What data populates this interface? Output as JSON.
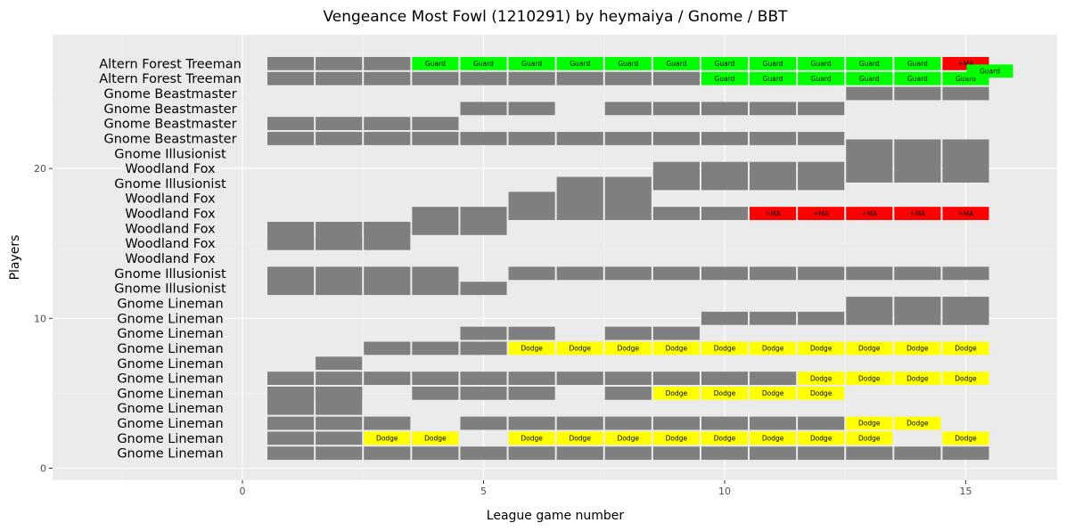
{
  "chart_data": {
    "type": "heatmap",
    "title": "Vengeance Most Fowl (1210291) by heymaiya / Gnome / BBT",
    "xlabel": "League game number",
    "ylabel": "Players",
    "xlim": [
      -3.5,
      16.5
    ],
    "ylim": [
      -1,
      28.5
    ],
    "x_ticks": [
      0,
      5,
      10,
      15
    ],
    "y_ticks": [
      0,
      10,
      20
    ],
    "colors": {
      "panel": "#ebebeb",
      "grid_major": "#ffffff",
      "tile": "#7f7f7f",
      "Guard": "#00ff00",
      "Dodge": "#ffff00",
      "+MA": "#ff0000"
    },
    "rows": [
      {
        "y": 1,
        "position": "Gnome Lineman"
      },
      {
        "y": 2,
        "position": "Gnome Lineman"
      },
      {
        "y": 3,
        "position": "Gnome Lineman"
      },
      {
        "y": 4,
        "position": "Gnome Lineman"
      },
      {
        "y": 5,
        "position": "Gnome Lineman"
      },
      {
        "y": 6,
        "position": "Gnome Lineman"
      },
      {
        "y": 7,
        "position": "Gnome Lineman"
      },
      {
        "y": 8,
        "position": "Gnome Lineman"
      },
      {
        "y": 9,
        "position": "Gnome Lineman"
      },
      {
        "y": 10,
        "position": "Gnome Lineman"
      },
      {
        "y": 11,
        "position": "Gnome Lineman"
      },
      {
        "y": 12,
        "position": "Gnome Illusionist"
      },
      {
        "y": 13,
        "position": "Gnome Illusionist"
      },
      {
        "y": 14,
        "position": "Woodland Fox"
      },
      {
        "y": 15,
        "position": "Woodland Fox"
      },
      {
        "y": 16,
        "position": "Woodland Fox"
      },
      {
        "y": 17,
        "position": "Woodland Fox"
      },
      {
        "y": 18,
        "position": "Woodland Fox"
      },
      {
        "y": 19,
        "position": "Gnome Illusionist"
      },
      {
        "y": 20,
        "position": "Woodland Fox"
      },
      {
        "y": 21,
        "position": "Gnome Illusionist"
      },
      {
        "y": 22,
        "position": "Gnome Beastmaster"
      },
      {
        "y": 23,
        "position": "Gnome Beastmaster"
      },
      {
        "y": 24,
        "position": "Gnome Beastmaster"
      },
      {
        "y": 25,
        "position": "Gnome Beastmaster"
      },
      {
        "y": 26,
        "position": "Altern Forest Treeman"
      },
      {
        "y": 27,
        "position": "Altern Forest Treeman"
      }
    ],
    "tiles": [
      {
        "x": 1,
        "y": 1,
        "h": 1
      },
      {
        "x": 2,
        "y": 1,
        "h": 1
      },
      {
        "x": 3,
        "y": 1,
        "h": 1
      },
      {
        "x": 4,
        "y": 1,
        "h": 1
      },
      {
        "x": 5,
        "y": 1,
        "h": 1
      },
      {
        "x": 6,
        "y": 1,
        "h": 1
      },
      {
        "x": 7,
        "y": 1,
        "h": 1
      },
      {
        "x": 8,
        "y": 1,
        "h": 1
      },
      {
        "x": 9,
        "y": 1,
        "h": 1
      },
      {
        "x": 10,
        "y": 1,
        "h": 1
      },
      {
        "x": 11,
        "y": 1,
        "h": 1
      },
      {
        "x": 12,
        "y": 1,
        "h": 1
      },
      {
        "x": 13,
        "y": 1,
        "h": 1
      },
      {
        "x": 14,
        "y": 1,
        "h": 1
      },
      {
        "x": 15,
        "y": 1,
        "h": 1
      },
      {
        "x": 1,
        "y": 2,
        "h": 1
      },
      {
        "x": 2,
        "y": 2,
        "h": 1
      },
      {
        "x": 1,
        "y": 3,
        "h": 1
      },
      {
        "x": 2,
        "y": 3,
        "h": 1
      },
      {
        "x": 3,
        "y": 3,
        "h": 1
      },
      {
        "x": 5,
        "y": 3,
        "h": 1
      },
      {
        "x": 6,
        "y": 3,
        "h": 1
      },
      {
        "x": 7,
        "y": 3,
        "h": 1
      },
      {
        "x": 8,
        "y": 3,
        "h": 1
      },
      {
        "x": 9,
        "y": 3,
        "h": 1
      },
      {
        "x": 10,
        "y": 3,
        "h": 1
      },
      {
        "x": 11,
        "y": 3,
        "h": 1
      },
      {
        "x": 12,
        "y": 3,
        "h": 1
      },
      {
        "x": 1,
        "y": 4.5,
        "h": 2
      },
      {
        "x": 2,
        "y": 4.5,
        "h": 2
      },
      {
        "x": 1,
        "y": 5,
        "h": 1
      },
      {
        "x": 2,
        "y": 5,
        "h": 1
      },
      {
        "x": 4,
        "y": 5,
        "h": 1
      },
      {
        "x": 5,
        "y": 5,
        "h": 1
      },
      {
        "x": 6,
        "y": 5,
        "h": 1
      },
      {
        "x": 8,
        "y": 5,
        "h": 1
      },
      {
        "x": 1,
        "y": 6,
        "h": 1
      },
      {
        "x": 2,
        "y": 6,
        "h": 1
      },
      {
        "x": 3,
        "y": 6,
        "h": 1
      },
      {
        "x": 4,
        "y": 6,
        "h": 1
      },
      {
        "x": 5,
        "y": 6,
        "h": 1
      },
      {
        "x": 6,
        "y": 6,
        "h": 1
      },
      {
        "x": 7,
        "y": 6,
        "h": 1
      },
      {
        "x": 8,
        "y": 6,
        "h": 1
      },
      {
        "x": 9,
        "y": 6,
        "h": 1
      },
      {
        "x": 10,
        "y": 6,
        "h": 1
      },
      {
        "x": 11,
        "y": 6,
        "h": 1
      },
      {
        "x": 2,
        "y": 7,
        "h": 1
      },
      {
        "x": 3,
        "y": 8,
        "h": 1
      },
      {
        "x": 4,
        "y": 8,
        "h": 1
      },
      {
        "x": 5,
        "y": 8,
        "h": 1
      },
      {
        "x": 5,
        "y": 9,
        "h": 1
      },
      {
        "x": 6,
        "y": 9,
        "h": 1
      },
      {
        "x": 8,
        "y": 9,
        "h": 1
      },
      {
        "x": 9,
        "y": 9,
        "h": 1
      },
      {
        "x": 10,
        "y": 10,
        "h": 1
      },
      {
        "x": 11,
        "y": 10,
        "h": 1
      },
      {
        "x": 12,
        "y": 10,
        "h": 1
      },
      {
        "x": 13,
        "y": 10.5,
        "h": 2
      },
      {
        "x": 14,
        "y": 10.5,
        "h": 2
      },
      {
        "x": 15,
        "y": 10.5,
        "h": 2
      },
      {
        "x": 1,
        "y": 12.5,
        "h": 2
      },
      {
        "x": 2,
        "y": 12.5,
        "h": 2
      },
      {
        "x": 3,
        "y": 12.5,
        "h": 2
      },
      {
        "x": 4,
        "y": 12.5,
        "h": 2
      },
      {
        "x": 5,
        "y": 12,
        "h": 1
      },
      {
        "x": 6,
        "y": 13,
        "h": 1
      },
      {
        "x": 7,
        "y": 13,
        "h": 1
      },
      {
        "x": 8,
        "y": 13,
        "h": 1
      },
      {
        "x": 9,
        "y": 13,
        "h": 1
      },
      {
        "x": 10,
        "y": 13,
        "h": 1
      },
      {
        "x": 11,
        "y": 13,
        "h": 1
      },
      {
        "x": 12,
        "y": 13,
        "h": 1
      },
      {
        "x": 13,
        "y": 13,
        "h": 1
      },
      {
        "x": 14,
        "y": 13,
        "h": 1
      },
      {
        "x": 15,
        "y": 13,
        "h": 1
      },
      {
        "x": 1,
        "y": 15,
        "h": 1
      },
      {
        "x": 2,
        "y": 15,
        "h": 1
      },
      {
        "x": 1,
        "y": 15.5,
        "h": 2
      },
      {
        "x": 2,
        "y": 15.5,
        "h": 2
      },
      {
        "x": 3,
        "y": 15.5,
        "h": 2
      },
      {
        "x": 3,
        "y": 16,
        "h": 1
      },
      {
        "x": 4,
        "y": 16.5,
        "h": 2
      },
      {
        "x": 5,
        "y": 16.5,
        "h": 2
      },
      {
        "x": 6,
        "y": 17.5,
        "h": 2
      },
      {
        "x": 7,
        "y": 18,
        "h": 3
      },
      {
        "x": 8,
        "y": 18,
        "h": 3
      },
      {
        "x": 9,
        "y": 17,
        "h": 1
      },
      {
        "x": 10,
        "y": 17,
        "h": 1
      },
      {
        "x": 9,
        "y": 19.5,
        "h": 2
      },
      {
        "x": 10,
        "y": 19.5,
        "h": 2
      },
      {
        "x": 11,
        "y": 19.5,
        "h": 2
      },
      {
        "x": 12,
        "y": 19.5,
        "h": 2
      },
      {
        "x": 13,
        "y": 20.5,
        "h": 3
      },
      {
        "x": 14,
        "y": 20.5,
        "h": 3
      },
      {
        "x": 15,
        "y": 20.5,
        "h": 3
      },
      {
        "x": 1,
        "y": 22,
        "h": 1
      },
      {
        "x": 2,
        "y": 22,
        "h": 1
      },
      {
        "x": 3,
        "y": 22,
        "h": 1
      },
      {
        "x": 4,
        "y": 22,
        "h": 1
      },
      {
        "x": 5,
        "y": 22,
        "h": 1
      },
      {
        "x": 6,
        "y": 22,
        "h": 1
      },
      {
        "x": 7,
        "y": 22,
        "h": 1
      },
      {
        "x": 8,
        "y": 22,
        "h": 1
      },
      {
        "x": 9,
        "y": 22,
        "h": 1
      },
      {
        "x": 10,
        "y": 22,
        "h": 1
      },
      {
        "x": 11,
        "y": 22,
        "h": 1
      },
      {
        "x": 12,
        "y": 22,
        "h": 1
      },
      {
        "x": 1,
        "y": 23,
        "h": 1
      },
      {
        "x": 2,
        "y": 23,
        "h": 1
      },
      {
        "x": 3,
        "y": 23,
        "h": 1
      },
      {
        "x": 4,
        "y": 23,
        "h": 1
      },
      {
        "x": 5,
        "y": 24,
        "h": 1
      },
      {
        "x": 6,
        "y": 24,
        "h": 1
      },
      {
        "x": 8,
        "y": 24,
        "h": 1
      },
      {
        "x": 9,
        "y": 24,
        "h": 1
      },
      {
        "x": 10,
        "y": 24,
        "h": 1
      },
      {
        "x": 11,
        "y": 24,
        "h": 1
      },
      {
        "x": 12,
        "y": 24,
        "h": 1
      },
      {
        "x": 13,
        "y": 25,
        "h": 1
      },
      {
        "x": 14,
        "y": 25,
        "h": 1
      },
      {
        "x": 15,
        "y": 25,
        "h": 1
      },
      {
        "x": 1,
        "y": 26,
        "h": 1
      },
      {
        "x": 2,
        "y": 26,
        "h": 1
      },
      {
        "x": 3,
        "y": 26,
        "h": 1
      },
      {
        "x": 4,
        "y": 26,
        "h": 1
      },
      {
        "x": 5,
        "y": 26,
        "h": 1
      },
      {
        "x": 6,
        "y": 26,
        "h": 1
      },
      {
        "x": 7,
        "y": 26,
        "h": 1
      },
      {
        "x": 8,
        "y": 26,
        "h": 1
      },
      {
        "x": 9,
        "y": 26,
        "h": 1
      },
      {
        "x": 1,
        "y": 27,
        "h": 1
      },
      {
        "x": 2,
        "y": 27,
        "h": 1
      },
      {
        "x": 3,
        "y": 27,
        "h": 1
      }
    ],
    "skills": [
      {
        "x": 3,
        "y": 2,
        "label": "Dodge"
      },
      {
        "x": 4,
        "y": 2,
        "label": "Dodge"
      },
      {
        "x": 6,
        "y": 2,
        "label": "Dodge"
      },
      {
        "x": 7,
        "y": 2,
        "label": "Dodge"
      },
      {
        "x": 8,
        "y": 2,
        "label": "Dodge"
      },
      {
        "x": 9,
        "y": 2,
        "label": "Dodge"
      },
      {
        "x": 10,
        "y": 2,
        "label": "Dodge"
      },
      {
        "x": 11,
        "y": 2,
        "label": "Dodge"
      },
      {
        "x": 12,
        "y": 2,
        "label": "Dodge"
      },
      {
        "x": 13,
        "y": 2,
        "label": "Dodge"
      },
      {
        "x": 15,
        "y": 2,
        "label": "Dodge"
      },
      {
        "x": 13,
        "y": 3,
        "label": "Dodge"
      },
      {
        "x": 14,
        "y": 3,
        "label": "Dodge"
      },
      {
        "x": 9,
        "y": 5,
        "label": "Dodge"
      },
      {
        "x": 10,
        "y": 5,
        "label": "Dodge"
      },
      {
        "x": 11,
        "y": 5,
        "label": "Dodge"
      },
      {
        "x": 12,
        "y": 5,
        "label": "Dodge"
      },
      {
        "x": 12,
        "y": 6,
        "label": "Dodge"
      },
      {
        "x": 13,
        "y": 6,
        "label": "Dodge"
      },
      {
        "x": 14,
        "y": 6,
        "label": "Dodge"
      },
      {
        "x": 15,
        "y": 6,
        "label": "Dodge"
      },
      {
        "x": 6,
        "y": 8,
        "label": "Dodge"
      },
      {
        "x": 7,
        "y": 8,
        "label": "Dodge"
      },
      {
        "x": 8,
        "y": 8,
        "label": "Dodge"
      },
      {
        "x": 9,
        "y": 8,
        "label": "Dodge"
      },
      {
        "x": 10,
        "y": 8,
        "label": "Dodge"
      },
      {
        "x": 11,
        "y": 8,
        "label": "Dodge"
      },
      {
        "x": 12,
        "y": 8,
        "label": "Dodge"
      },
      {
        "x": 13,
        "y": 8,
        "label": "Dodge"
      },
      {
        "x": 14,
        "y": 8,
        "label": "Dodge"
      },
      {
        "x": 15,
        "y": 8,
        "label": "Dodge"
      },
      {
        "x": 11,
        "y": 17,
        "label": "+MA"
      },
      {
        "x": 12,
        "y": 17,
        "label": "+MA"
      },
      {
        "x": 13,
        "y": 17,
        "label": "+MA"
      },
      {
        "x": 14,
        "y": 17,
        "label": "+MA"
      },
      {
        "x": 15,
        "y": 17,
        "label": "+MA"
      },
      {
        "x": 10,
        "y": 26,
        "label": "Guard"
      },
      {
        "x": 11,
        "y": 26,
        "label": "Guard"
      },
      {
        "x": 12,
        "y": 26,
        "label": "Guard"
      },
      {
        "x": 13,
        "y": 26,
        "label": "Guard"
      },
      {
        "x": 14,
        "y": 26,
        "label": "Guard"
      },
      {
        "x": 15,
        "y": 26,
        "label": "Guard"
      },
      {
        "x": 4,
        "y": 27,
        "label": "Guard"
      },
      {
        "x": 5,
        "y": 27,
        "label": "Guard"
      },
      {
        "x": 6,
        "y": 27,
        "label": "Guard"
      },
      {
        "x": 7,
        "y": 27,
        "label": "Guard"
      },
      {
        "x": 8,
        "y": 27,
        "label": "Guard"
      },
      {
        "x": 9,
        "y": 27,
        "label": "Guard"
      },
      {
        "x": 10,
        "y": 27,
        "label": "Guard"
      },
      {
        "x": 11,
        "y": 27,
        "label": "Guard"
      },
      {
        "x": 12,
        "y": 27,
        "label": "Guard"
      },
      {
        "x": 13,
        "y": 27,
        "label": "Guard"
      },
      {
        "x": 14,
        "y": 27,
        "label": "Guard"
      },
      {
        "x": 15,
        "y": 27,
        "label": "+MA"
      },
      {
        "x": 15.5,
        "y": 26.5,
        "label": "Guard"
      }
    ]
  }
}
